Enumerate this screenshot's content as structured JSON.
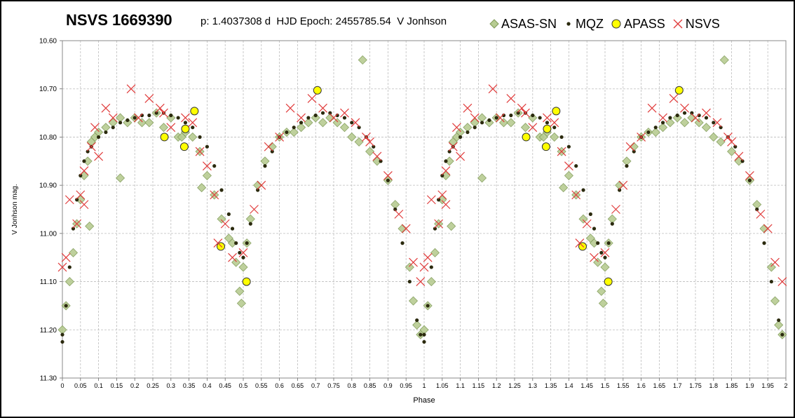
{
  "chart_data": {
    "type": "scatter",
    "title": "NSVS 1669390",
    "subtitle": "p: 1.4037308 d  HJD Epoch: 2455785.54  V Jonhson",
    "xlabel": "Phase",
    "ylabel": "V Jonhson mag.",
    "xlim": [
      0,
      2
    ],
    "ylim": [
      10.6,
      11.3
    ],
    "y_inverted": true,
    "grid": true,
    "legend_position": "top-right",
    "x_ticks": [
      "0",
      "0.05",
      "0.1",
      "0.15",
      "0.2",
      "0.25",
      "0.3",
      "0.35",
      "0.4",
      "0.45",
      "0.5",
      "0.55",
      "0.6",
      "0.65",
      "0.7",
      "0.75",
      "0.8",
      "0.85",
      "0.9",
      "0.95",
      "1",
      "1.05",
      "1.1",
      "1.15",
      "1.2",
      "1.25",
      "1.3",
      "1.35",
      "1.4",
      "1.45",
      "1.5",
      "1.55",
      "1.6",
      "1.65",
      "1.7",
      "1.75",
      "1.8",
      "1.85",
      "1.9",
      "1.95",
      "2"
    ],
    "y_ticks": [
      "10.60",
      "10.70",
      "10.80",
      "10.90",
      "11.00",
      "11.10",
      "11.20",
      "11.30"
    ],
    "series": [
      {
        "name": "ASAS-SN",
        "marker": "diamond",
        "color": "#b7cc92",
        "edge_color": "#7f9a57",
        "x": [
          0.0,
          0.01,
          0.02,
          0.03,
          0.04,
          0.05,
          0.06,
          0.07,
          0.08,
          0.09,
          0.1,
          0.12,
          0.14,
          0.16,
          0.16,
          0.18,
          0.2,
          0.22,
          0.24,
          0.26,
          0.28,
          0.3,
          0.32,
          0.34,
          0.36,
          0.38,
          0.385,
          0.4,
          0.42,
          0.44,
          0.46,
          0.47,
          0.48,
          0.49,
          0.495,
          0.5,
          0.51,
          0.52,
          0.54,
          0.56,
          0.58,
          0.6,
          0.62,
          0.64,
          0.66,
          0.68,
          0.7,
          0.72,
          0.74,
          0.76,
          0.78,
          0.8,
          0.83,
          0.82,
          0.85,
          0.87,
          0.9,
          0.92,
          0.94,
          0.96,
          0.97,
          0.98,
          0.99,
          0.075,
          0.33
        ],
        "y": [
          11.2,
          11.15,
          11.1,
          11.04,
          10.98,
          10.93,
          10.88,
          10.85,
          10.81,
          10.8,
          10.79,
          10.78,
          10.77,
          10.76,
          10.885,
          10.77,
          10.76,
          10.77,
          10.77,
          10.75,
          10.78,
          10.76,
          10.8,
          10.79,
          10.8,
          10.83,
          10.905,
          10.88,
          10.92,
          10.97,
          11.01,
          11.02,
          11.06,
          11.12,
          11.145,
          11.07,
          11.02,
          10.97,
          10.9,
          10.85,
          10.82,
          10.8,
          10.79,
          10.79,
          10.78,
          10.77,
          10.76,
          10.77,
          10.76,
          10.77,
          10.78,
          10.8,
          10.64,
          10.81,
          10.83,
          10.85,
          10.89,
          10.94,
          10.99,
          11.07,
          11.14,
          11.19,
          11.21,
          10.985,
          10.8
        ]
      },
      {
        "name": "MQZ",
        "marker": "dot",
        "color": "#2b2a0e",
        "x": [
          0.0,
          0.01,
          0.02,
          0.03,
          0.04,
          0.05,
          0.06,
          0.07,
          0.08,
          0.1,
          0.12,
          0.14,
          0.16,
          0.18,
          0.2,
          0.22,
          0.24,
          0.26,
          0.28,
          0.3,
          0.32,
          0.34,
          0.36,
          0.38,
          0.4,
          0.42,
          0.44,
          0.46,
          0.47,
          0.48,
          0.49,
          0.5,
          0.51,
          0.52,
          0.54,
          0.56,
          0.58,
          0.6,
          0.62,
          0.64,
          0.66,
          0.68,
          0.7,
          0.72,
          0.74,
          0.76,
          0.78,
          0.8,
          0.82,
          0.84,
          0.86,
          0.88,
          0.9,
          0.92,
          0.94,
          0.96,
          0.98,
          0.99,
          0.0
        ],
        "y": [
          11.21,
          11.15,
          11.07,
          10.99,
          10.93,
          10.88,
          10.85,
          10.83,
          10.82,
          10.8,
          10.79,
          10.78,
          10.77,
          10.765,
          10.76,
          10.755,
          10.755,
          10.75,
          10.75,
          10.755,
          10.76,
          10.77,
          10.78,
          10.8,
          10.82,
          10.86,
          10.91,
          10.96,
          10.99,
          11.02,
          11.04,
          11.05,
          11.02,
          10.98,
          10.91,
          10.86,
          10.83,
          10.8,
          10.79,
          10.78,
          10.77,
          10.76,
          10.755,
          10.75,
          10.75,
          10.755,
          10.76,
          10.77,
          10.78,
          10.8,
          10.82,
          10.85,
          10.89,
          10.95,
          11.02,
          11.1,
          11.18,
          11.21,
          11.225
        ]
      },
      {
        "name": "APASS",
        "marker": "circle",
        "color": "#ffff00",
        "edge_color": "#333333",
        "x": [
          0.282,
          0.34,
          0.337,
          0.365,
          0.438,
          0.509,
          0.705
        ],
        "y": [
          10.8,
          10.783,
          10.82,
          10.746,
          11.027,
          11.1,
          10.703
        ]
      },
      {
        "name": "NSVS",
        "marker": "x",
        "color": "#e03c3c",
        "x": [
          0.0,
          0.01,
          0.02,
          0.04,
          0.05,
          0.06,
          0.08,
          0.09,
          0.12,
          0.14,
          0.19,
          0.21,
          0.24,
          0.27,
          0.3,
          0.34,
          0.36,
          0.38,
          0.4,
          0.42,
          0.43,
          0.45,
          0.47,
          0.5,
          0.53,
          0.55,
          0.57,
          0.6,
          0.63,
          0.66,
          0.69,
          0.72,
          0.75,
          0.78,
          0.81,
          0.84,
          0.87,
          0.9,
          0.93,
          0.95,
          0.97,
          0.99,
          0.06,
          0.1,
          0.28,
          0.85
        ],
        "y": [
          11.07,
          11.05,
          10.93,
          10.98,
          10.92,
          10.87,
          10.82,
          10.78,
          10.74,
          10.76,
          10.7,
          10.76,
          10.72,
          10.74,
          10.78,
          10.76,
          10.77,
          10.83,
          10.86,
          10.92,
          11.02,
          10.98,
          11.05,
          11.04,
          10.95,
          10.9,
          10.82,
          10.8,
          10.74,
          10.76,
          10.72,
          10.74,
          10.76,
          10.75,
          10.77,
          10.8,
          10.84,
          10.88,
          10.96,
          10.99,
          11.06,
          11.1,
          10.94,
          10.84,
          10.75,
          10.81
        ]
      }
    ]
  }
}
